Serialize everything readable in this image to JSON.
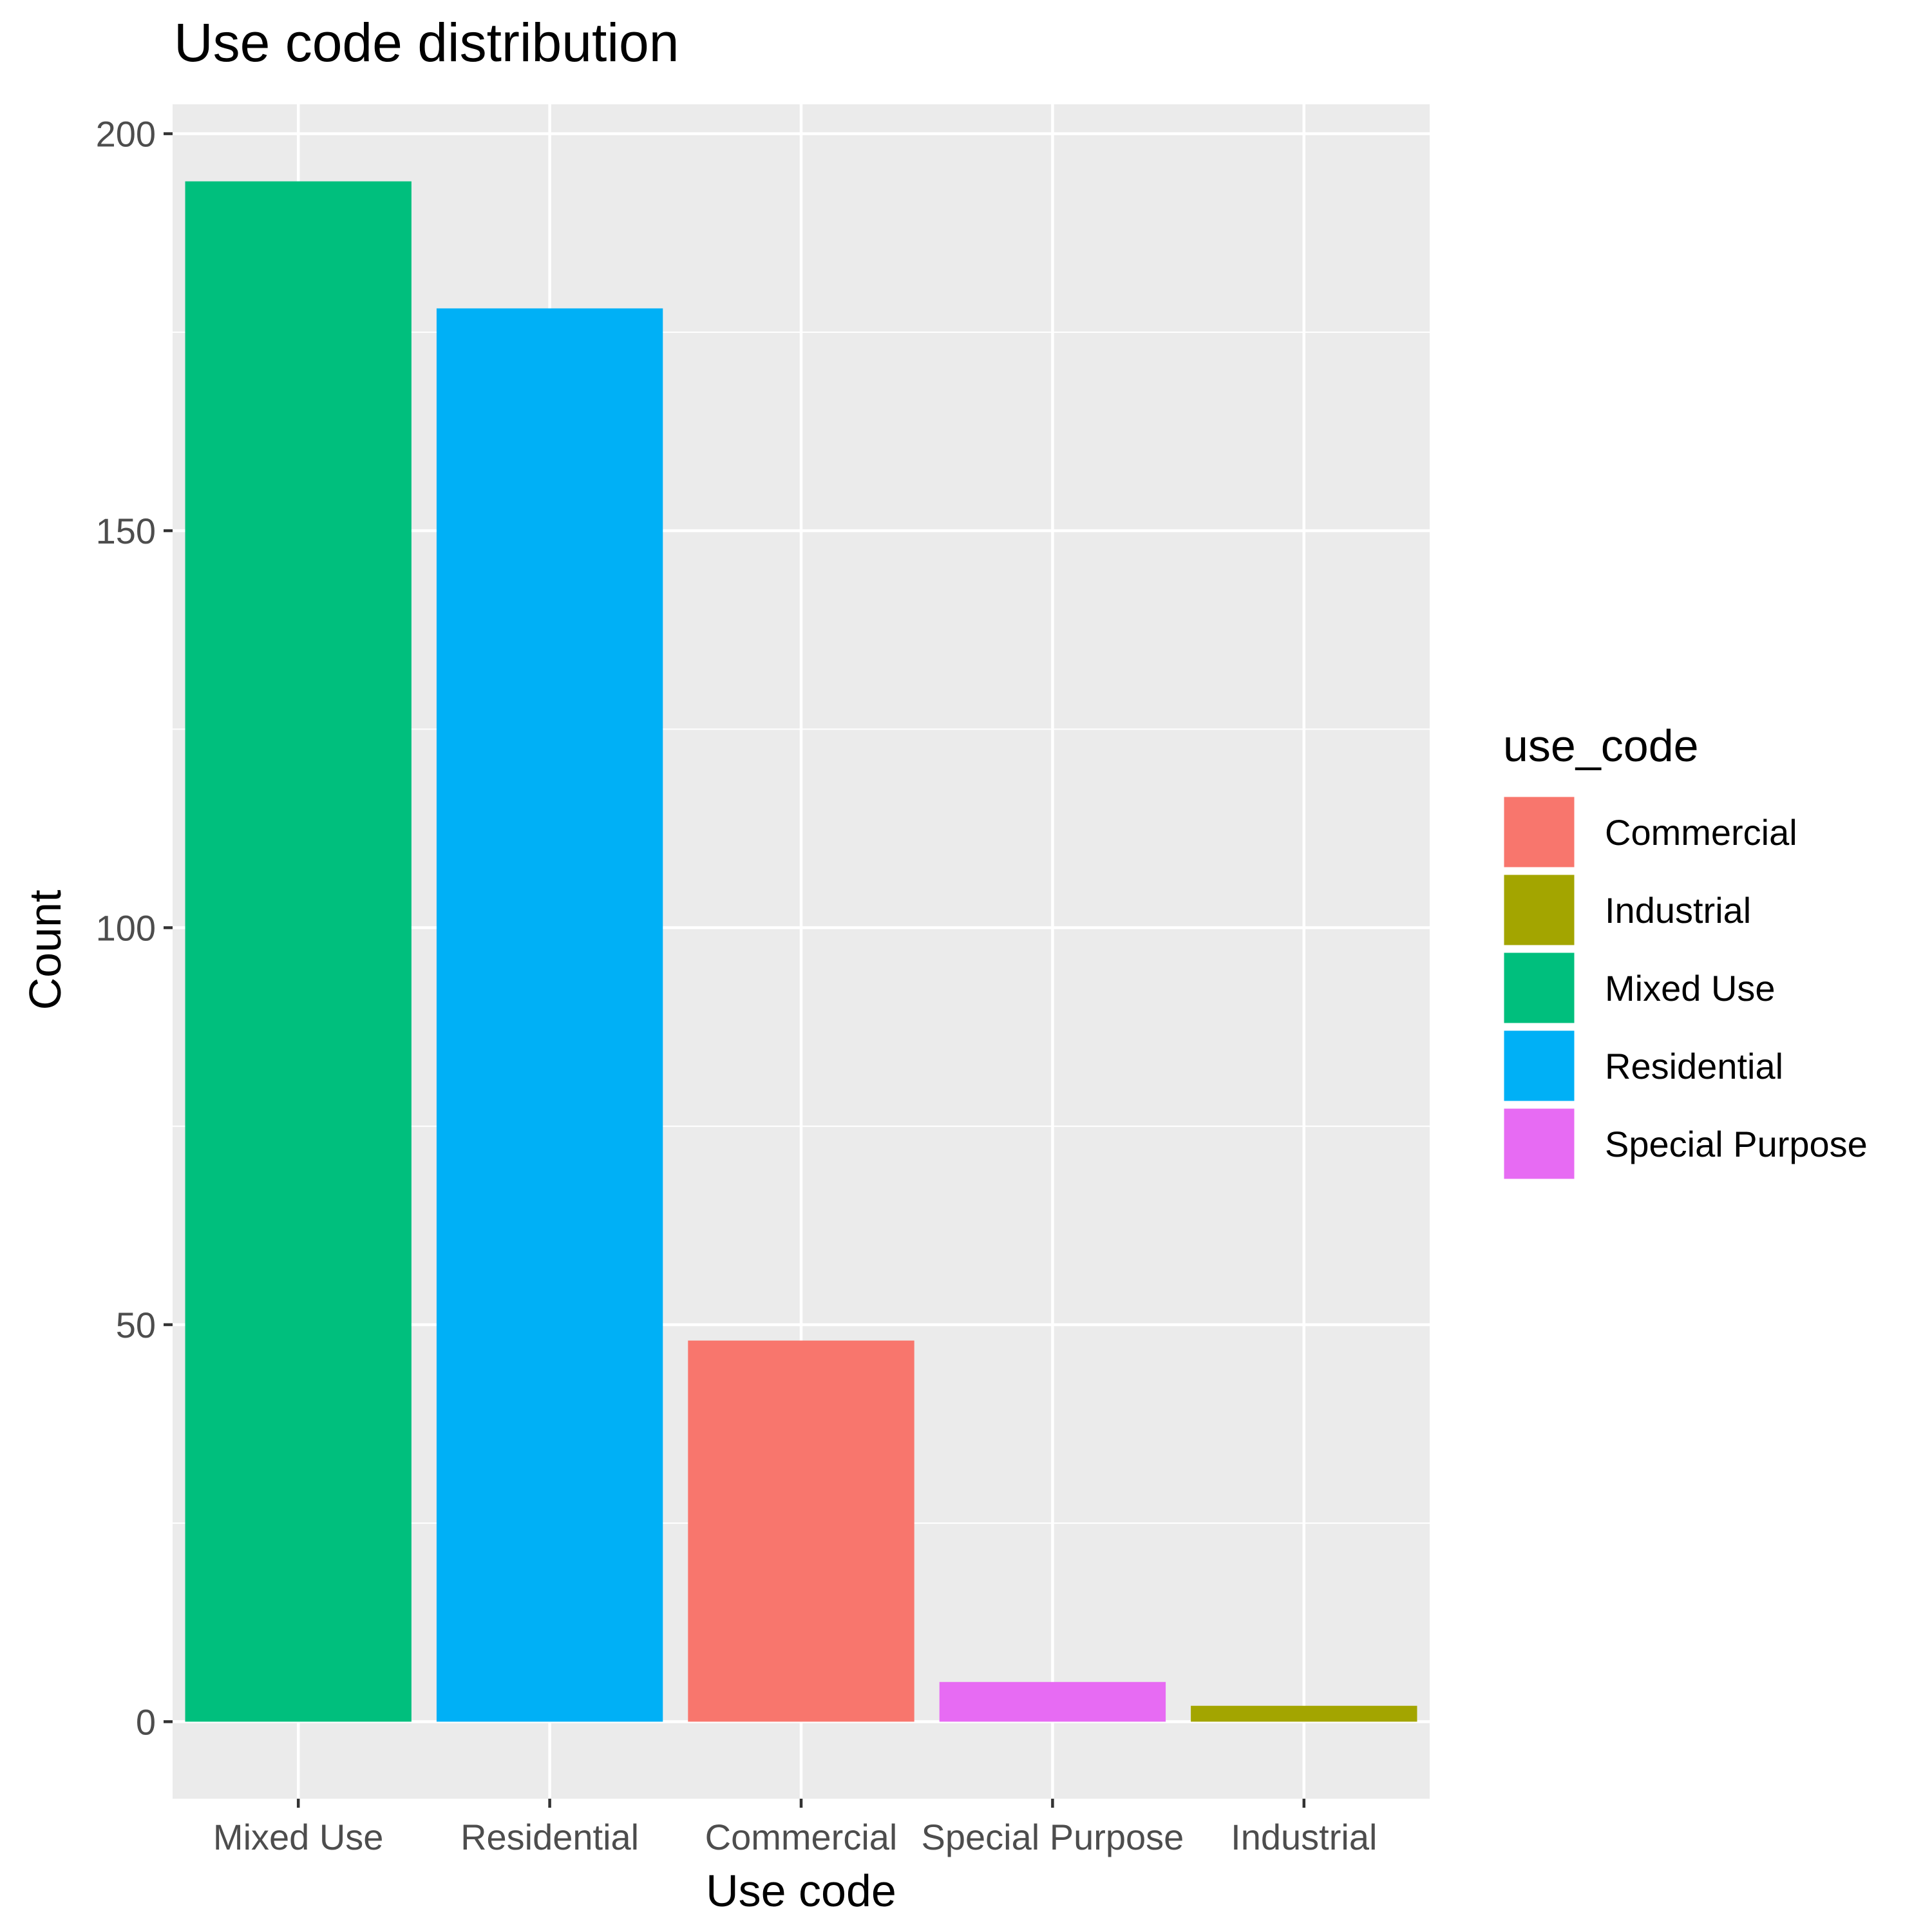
{
  "chart_data": {
    "type": "bar",
    "title": "Use code distribution",
    "xlabel": "Use code",
    "ylabel": "Count",
    "categories": [
      "Mixed Use",
      "Residential",
      "Commercial",
      "Special Purpose",
      "Industrial"
    ],
    "values": [
      194,
      178,
      48,
      5,
      2
    ],
    "bar_colors": [
      "#00BF7D",
      "#00B0F6",
      "#F8766D",
      "#E76BF3",
      "#A3A500"
    ],
    "ylim": [
      -9.7,
      203.7
    ],
    "y_ticks": [
      0,
      50,
      100,
      150,
      200
    ],
    "y_tick_labels": [
      "0",
      "50",
      "100",
      "150",
      "200"
    ],
    "grid": true,
    "panel_background": "#EBEBEB",
    "grid_color": "#FFFFFF",
    "legend": {
      "title": "use_code",
      "position": "right",
      "entries": [
        {
          "label": "Commercial",
          "color": "#F8766D"
        },
        {
          "label": "Industrial",
          "color": "#A3A500"
        },
        {
          "label": "Mixed Use",
          "color": "#00BF7D"
        },
        {
          "label": "Residential",
          "color": "#00B0F6"
        },
        {
          "label": "Special Purpose",
          "color": "#E76BF3"
        }
      ]
    }
  }
}
